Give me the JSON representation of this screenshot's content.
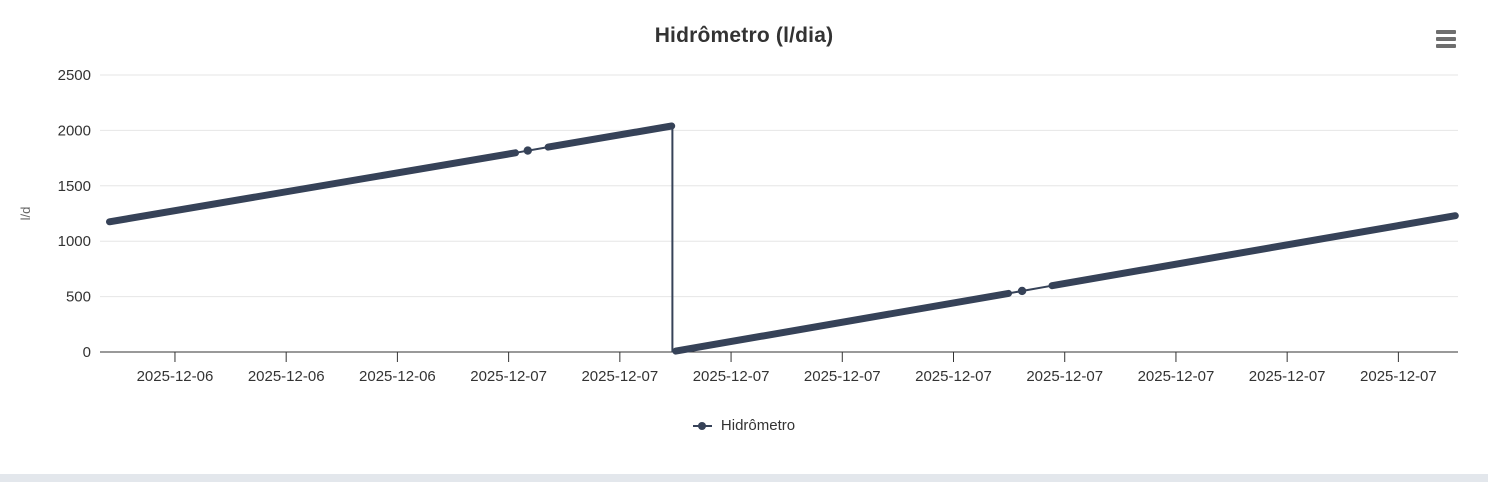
{
  "chart": {
    "title": "Hidrômetro (l/dia)",
    "context_menu_icon": "hamburger-icon",
    "legend": {
      "label": "Hidrômetro"
    },
    "colors": {
      "series": "#364258",
      "axis_text": "#333333",
      "axis_line": "#333333",
      "grid": "#e6e6e6",
      "yaxis_title_text": "#666666",
      "hamburger": "#6e6e6e",
      "bottom_strip": "#e3e7ec",
      "background": "#ffffff"
    }
  },
  "chart_data": {
    "type": "line",
    "title": "Hidrômetro (l/dia)",
    "xlabel": "",
    "ylabel": "l/d",
    "ylim": [
      0,
      2500
    ],
    "yticks": [
      0,
      500,
      1000,
      1500,
      2000,
      2500
    ],
    "xtick_labels": [
      "2025-12-06",
      "2025-12-06",
      "2025-12-06",
      "2025-12-07",
      "2025-12-07",
      "2025-12-07",
      "2025-12-07",
      "2025-12-07",
      "2025-12-07",
      "2025-12-07",
      "2025-12-07",
      "2025-12-07"
    ],
    "grid": "horizontal",
    "legend_position": "bottom-center",
    "series": [
      {
        "name": "Hidrômetro",
        "color": "#364258",
        "description": "Cumulative daily water-meter volume rising to ~2040 l/d, resetting to ~0, then rising again to ~1230 l/d",
        "segments": [
          {
            "style": "dense",
            "points": [
              [
                0.007,
                1175
              ],
              [
                0.306,
                1798
              ]
            ]
          },
          {
            "style": "sparse",
            "points": [
              [
                0.306,
                1798
              ],
              [
                0.33,
                1849
              ]
            ]
          },
          {
            "style": "dense",
            "points": [
              [
                0.33,
                1849
              ],
              [
                0.421,
                2040
              ]
            ]
          },
          {
            "style": "sparse",
            "points": [
              [
                0.4215,
                2040
              ],
              [
                0.4215,
                5
              ]
            ]
          },
          {
            "style": "dense",
            "points": [
              [
                0.424,
                8
              ],
              [
                0.669,
                529
              ]
            ]
          },
          {
            "style": "sparse",
            "points": [
              [
                0.669,
                529
              ],
              [
                0.701,
                598
              ]
            ]
          },
          {
            "style": "dense",
            "points": [
              [
                0.701,
                598
              ],
              [
                0.998,
                1230
              ]
            ]
          }
        ],
        "markers": [
          [
            0.315,
            1818
          ],
          [
            0.679,
            551
          ]
        ]
      }
    ]
  }
}
